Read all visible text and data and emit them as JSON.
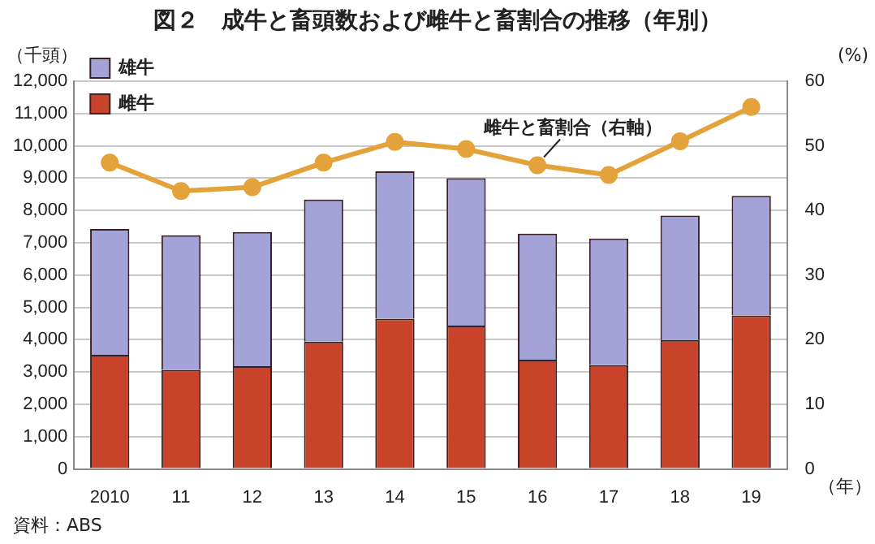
{
  "chart_data": {
    "type": "bar",
    "title": "図２　成牛と畜頭数および雌牛と畜割合の推移（年別）",
    "ylabel": "（千頭）",
    "y2label": "(%)",
    "xlabel": "（年）",
    "annotations": [
      "資料：ABS"
    ],
    "categories": [
      "2010",
      "11",
      "12",
      "13",
      "14",
      "15",
      "16",
      "17",
      "18",
      "19"
    ],
    "stacked": true,
    "series": [
      {
        "name": "雌牛",
        "color": "#c9432a",
        "values": [
          3530,
          3070,
          3180,
          3940,
          4650,
          4440,
          3380,
          3210,
          3990,
          4750
        ]
      },
      {
        "name": "雄牛",
        "color": "#a3a3d8",
        "values": [
          3900,
          4160,
          4150,
          4400,
          4560,
          4560,
          3900,
          3920,
          3850,
          3700
        ]
      },
      {
        "name": "雌牛と畜割合（右軸）",
        "type": "line",
        "axis": "y2",
        "color": "#e3a33a",
        "values": [
          47.4,
          43.0,
          43.6,
          47.4,
          50.6,
          49.5,
          47.0,
          45.5,
          50.7,
          56.0
        ]
      }
    ],
    "ylim": [
      0,
      12000
    ],
    "yticks": [
      0,
      {
        "value": 1000,
        "label": "1,000"
      },
      {
        "value": 2000,
        "label": "2,000"
      },
      {
        "value": 3000,
        "label": "3,000"
      },
      {
        "value": 4000,
        "label": "4,000"
      },
      {
        "value": 5000,
        "label": "5,000"
      },
      {
        "value": 6000,
        "label": "6,000"
      },
      {
        "value": 7000,
        "label": "7,000"
      },
      {
        "value": 8000,
        "label": "8,000"
      },
      {
        "value": 9000,
        "label": "9,000"
      },
      {
        "value": 10000,
        "label": "10,000"
      },
      {
        "value": 11000,
        "label": "11,000"
      },
      {
        "value": 12000,
        "label": "12,000"
      }
    ],
    "y2lim": [
      0,
      60
    ],
    "y2ticks": [
      0,
      10,
      20,
      30,
      40,
      50,
      60
    ],
    "grid": "y",
    "legend": "top left",
    "marker": "circle",
    "line_style": "solid"
  }
}
